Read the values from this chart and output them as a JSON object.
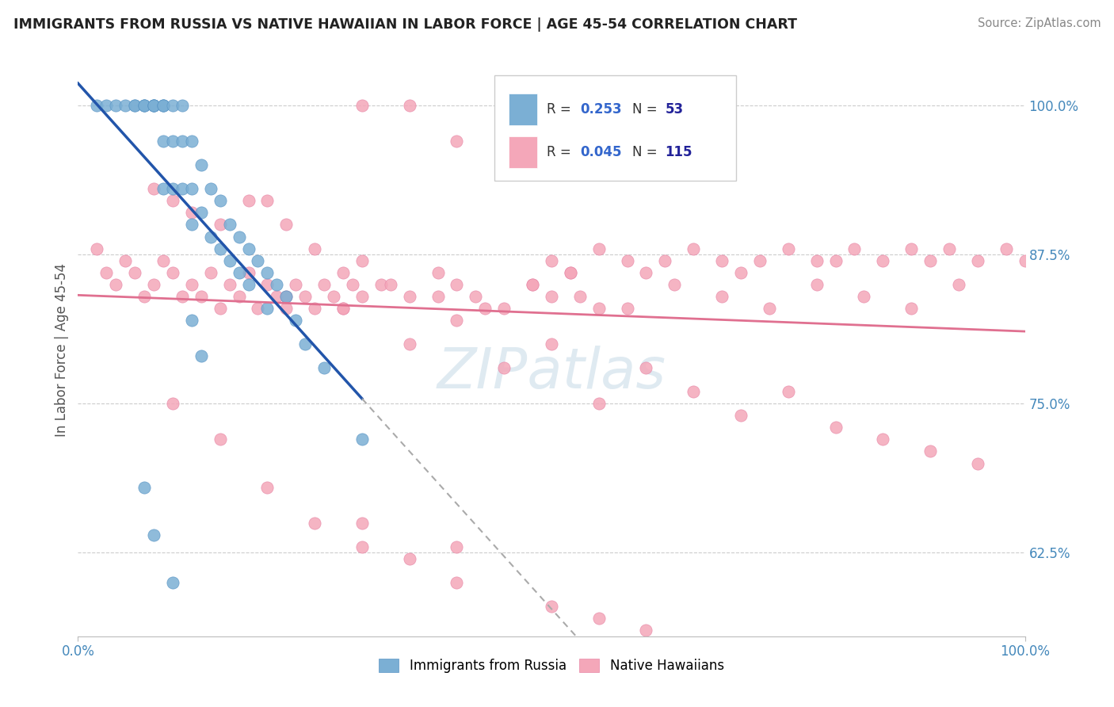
{
  "title": "IMMIGRANTS FROM RUSSIA VS NATIVE HAWAIIAN IN LABOR FORCE | AGE 45-54 CORRELATION CHART",
  "source": "Source: ZipAtlas.com",
  "ylabel": "In Labor Force | Age 45-54",
  "xlim": [
    0.0,
    1.0
  ],
  "ylim": [
    0.555,
    1.035
  ],
  "ytick_labels": [
    "62.5%",
    "75.0%",
    "87.5%",
    "100.0%"
  ],
  "ytick_values": [
    0.625,
    0.75,
    0.875,
    1.0
  ],
  "russia_color": "#7bafd4",
  "hawaii_color": "#f4a7b9",
  "russia_edge_color": "#5a95c5",
  "hawaii_edge_color": "#e888a8",
  "russia_R": 0.253,
  "russia_N": 53,
  "hawaii_R": 0.045,
  "hawaii_N": 115,
  "russia_line_color": "#2255aa",
  "russia_line_dashed_color": "#aaaaaa",
  "hawaii_line_color": "#e07090",
  "background_color": "#ffffff",
  "grid_color": "#cccccc",
  "legend_border_color": "#cccccc",
  "watermark_color": "#dce8f0",
  "title_color": "#222222",
  "source_color": "#888888",
  "axis_label_color": "#555555",
  "tick_color": "#4488bb",
  "legend_R_color": "#3366cc",
  "legend_N_color": "#222299"
}
